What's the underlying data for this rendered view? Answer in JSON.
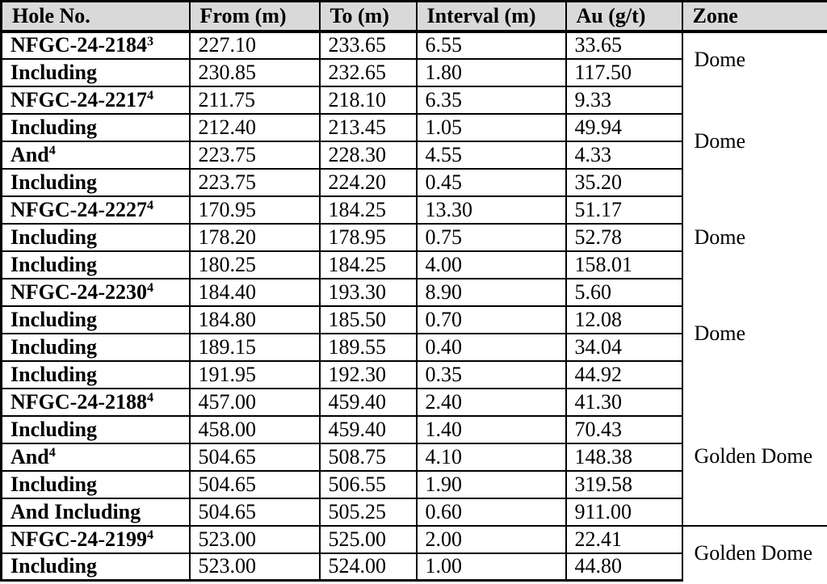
{
  "colors": {
    "header_bg": "#d9d9d9",
    "border": "#000000",
    "text": "#000000",
    "page_bg": "#ffffff"
  },
  "table": {
    "columns": [
      "Hole No.",
      "From (m)",
      "To (m)",
      "Interval (m)",
      "Au (g/t)",
      "Zone"
    ],
    "rows": [
      {
        "hole": "NFGC-24-2184",
        "sup": "3",
        "from": "227.10",
        "to": "233.65",
        "interval": "6.55",
        "au": "33.65"
      },
      {
        "hole": "Including",
        "sup": "",
        "from": "230.85",
        "to": "232.65",
        "interval": "1.80",
        "au": "117.50"
      },
      {
        "hole": "NFGC-24-2217",
        "sup": "4",
        "from": "211.75",
        "to": "218.10",
        "interval": "6.35",
        "au": "9.33"
      },
      {
        "hole": "Including",
        "sup": "",
        "from": "212.40",
        "to": "213.45",
        "interval": "1.05",
        "au": "49.94"
      },
      {
        "hole": "And",
        "sup": "4",
        "from": "223.75",
        "to": "228.30",
        "interval": "4.55",
        "au": "4.33"
      },
      {
        "hole": "Including",
        "sup": "",
        "from": "223.75",
        "to": "224.20",
        "interval": "0.45",
        "au": "35.20"
      },
      {
        "hole": "NFGC-24-2227",
        "sup": "4",
        "from": "170.95",
        "to": "184.25",
        "interval": "13.30",
        "au": "51.17"
      },
      {
        "hole": "Including",
        "sup": "",
        "from": "178.20",
        "to": "178.95",
        "interval": "0.75",
        "au": "52.78"
      },
      {
        "hole": "Including",
        "sup": "",
        "from": "180.25",
        "to": "184.25",
        "interval": "4.00",
        "au": "158.01"
      },
      {
        "hole": "NFGC-24-2230",
        "sup": "4",
        "from": "184.40",
        "to": "193.30",
        "interval": "8.90",
        "au": "5.60"
      },
      {
        "hole": "Including",
        "sup": "",
        "from": "184.80",
        "to": "185.50",
        "interval": "0.70",
        "au": "12.08"
      },
      {
        "hole": "Including",
        "sup": "",
        "from": "189.15",
        "to": "189.55",
        "interval": "0.40",
        "au": "34.04"
      },
      {
        "hole": "Including",
        "sup": "",
        "from": "191.95",
        "to": "192.30",
        "interval": "0.35",
        "au": "44.92"
      },
      {
        "hole": "NFGC-24-2188",
        "sup": "4",
        "from": "457.00",
        "to": "459.40",
        "interval": "2.40",
        "au": "41.30"
      },
      {
        "hole": "Including",
        "sup": "",
        "from": "458.00",
        "to": "459.40",
        "interval": "1.40",
        "au": "70.43"
      },
      {
        "hole": "And",
        "sup": "4",
        "from": "504.65",
        "to": "508.75",
        "interval": "4.10",
        "au": "148.38"
      },
      {
        "hole": "Including",
        "sup": "",
        "from": "504.65",
        "to": "506.55",
        "interval": "1.90",
        "au": "319.58"
      },
      {
        "hole": "And Including",
        "sup": "",
        "from": "504.65",
        "to": "505.25",
        "interval": "0.60",
        "au": "911.00"
      },
      {
        "hole": "NFGC-24-2199",
        "sup": "4",
        "from": "523.00",
        "to": "525.00",
        "interval": "2.00",
        "au": "22.41"
      },
      {
        "hole": "Including",
        "sup": "",
        "from": "523.00",
        "to": "524.00",
        "interval": "1.00",
        "au": "44.80"
      }
    ],
    "zones": [
      {
        "label": "Dome",
        "span": 2,
        "divider": false
      },
      {
        "label": "Dome",
        "span": 4,
        "divider": false
      },
      {
        "label": "Dome",
        "span": 3,
        "divider": false
      },
      {
        "label": "Dome",
        "span": 4,
        "divider": false
      },
      {
        "label": "Golden Dome",
        "span": 5,
        "divider": true
      },
      {
        "label": "Golden Dome",
        "span": 2,
        "divider": false
      }
    ]
  }
}
